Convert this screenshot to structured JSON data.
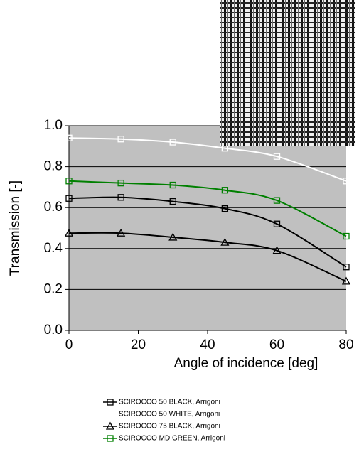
{
  "chart_data": {
    "type": "line",
    "x_label": "Angle of incidence [deg]",
    "y_label": "Transmission [-]",
    "x": [
      0,
      15,
      30,
      45,
      60,
      80
    ],
    "series": [
      {
        "name": "SCIROCCO 50 BLACK,  Arrigoni",
        "color": "#000000",
        "marker": "square",
        "values": [
          0.645,
          0.65,
          0.63,
          0.595,
          0.52,
          0.31
        ]
      },
      {
        "name": "SCIROCCO 50 WHITE,  Arrigoni",
        "color": "#ffffff",
        "marker": "square",
        "values": [
          0.94,
          0.935,
          0.92,
          0.89,
          0.85,
          0.73
        ]
      },
      {
        "name": "SCIROCCO 75 BLACK,  Arrigoni",
        "color": "#000000",
        "marker": "triangle",
        "values": [
          0.475,
          0.475,
          0.455,
          0.43,
          0.39,
          0.24
        ]
      },
      {
        "name": "SCIROCCO MD GREEN, Arrigoni",
        "color": "#008000",
        "marker": "square",
        "values": [
          0.73,
          0.72,
          0.71,
          0.685,
          0.635,
          0.46
        ]
      }
    ],
    "xlim": [
      0,
      80
    ],
    "xticks": [
      0,
      20,
      40,
      60,
      80
    ],
    "ylim": [
      0,
      1
    ],
    "yticks": [
      {
        "value": 0,
        "label": "0.0"
      },
      {
        "value": 0.2,
        "label": "0.2"
      },
      {
        "value": 0.4,
        "label": "0.4"
      },
      {
        "value": 0.6,
        "label": "0.6"
      },
      {
        "value": 0.8,
        "label": "0.8"
      },
      {
        "value": 1,
        "label": "1.0"
      }
    ],
    "grid": true,
    "plot_background": "#c0c0c0"
  }
}
